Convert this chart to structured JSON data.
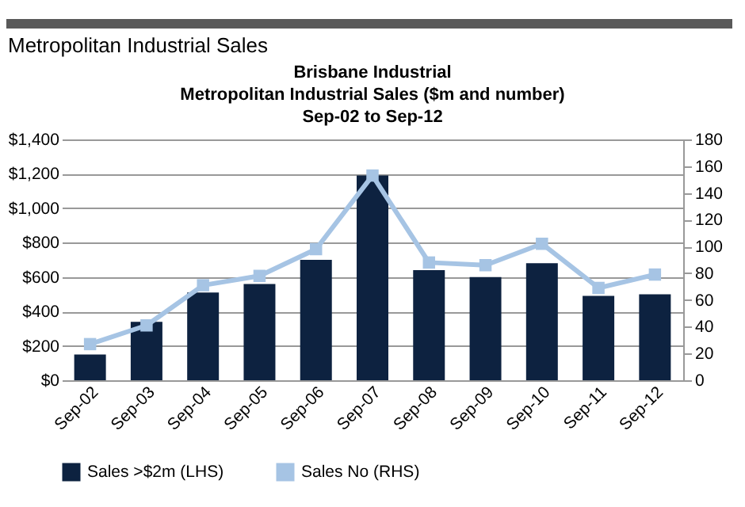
{
  "chart_data": {
    "type": "bar",
    "title": "Metropolitan Industrial Sales",
    "subtitle": "Brisbane Industrial\nMetropolitan Industrial Sales ($m and number)\nSep-02 to Sep-12",
    "categories": [
      "Sep-02",
      "Sep-03",
      "Sep-04",
      "Sep-05",
      "Sep-06",
      "Sep-07",
      "Sep-08",
      "Sep-09",
      "Sep-10",
      "Sep-11",
      "Sep-12"
    ],
    "series": [
      {
        "name": "Sales >$2m (LHS)",
        "color": "#0d2240",
        "values": [
          150,
          340,
          510,
          560,
          700,
          1190,
          640,
          600,
          680,
          490,
          500
        ]
      },
      {
        "name": "Sales No (RHS)",
        "type": "line",
        "axis": "y2",
        "color": "#a6c4e4",
        "marker": "square",
        "line_style": "solid",
        "values": [
          27,
          41,
          71,
          78,
          98,
          153,
          88,
          86,
          102,
          69,
          79
        ]
      }
    ],
    "ylim": [
      0,
      1400
    ],
    "yticks": [
      {
        "value": 0,
        "label": "$0"
      },
      {
        "value": 200,
        "label": "$200"
      },
      {
        "value": 400,
        "label": "$400"
      },
      {
        "value": 600,
        "label": "$600"
      },
      {
        "value": 800,
        "label": "$800"
      },
      {
        "value": 1000,
        "label": "$1,000"
      },
      {
        "value": 1200,
        "label": "$1,200"
      },
      {
        "value": 1400,
        "label": "$1,400"
      }
    ],
    "y2lim": [
      0,
      180
    ],
    "y2ticks": [
      0,
      20,
      40,
      60,
      80,
      100,
      120,
      140,
      160,
      180
    ],
    "grid": "y",
    "legend": "bottom"
  }
}
